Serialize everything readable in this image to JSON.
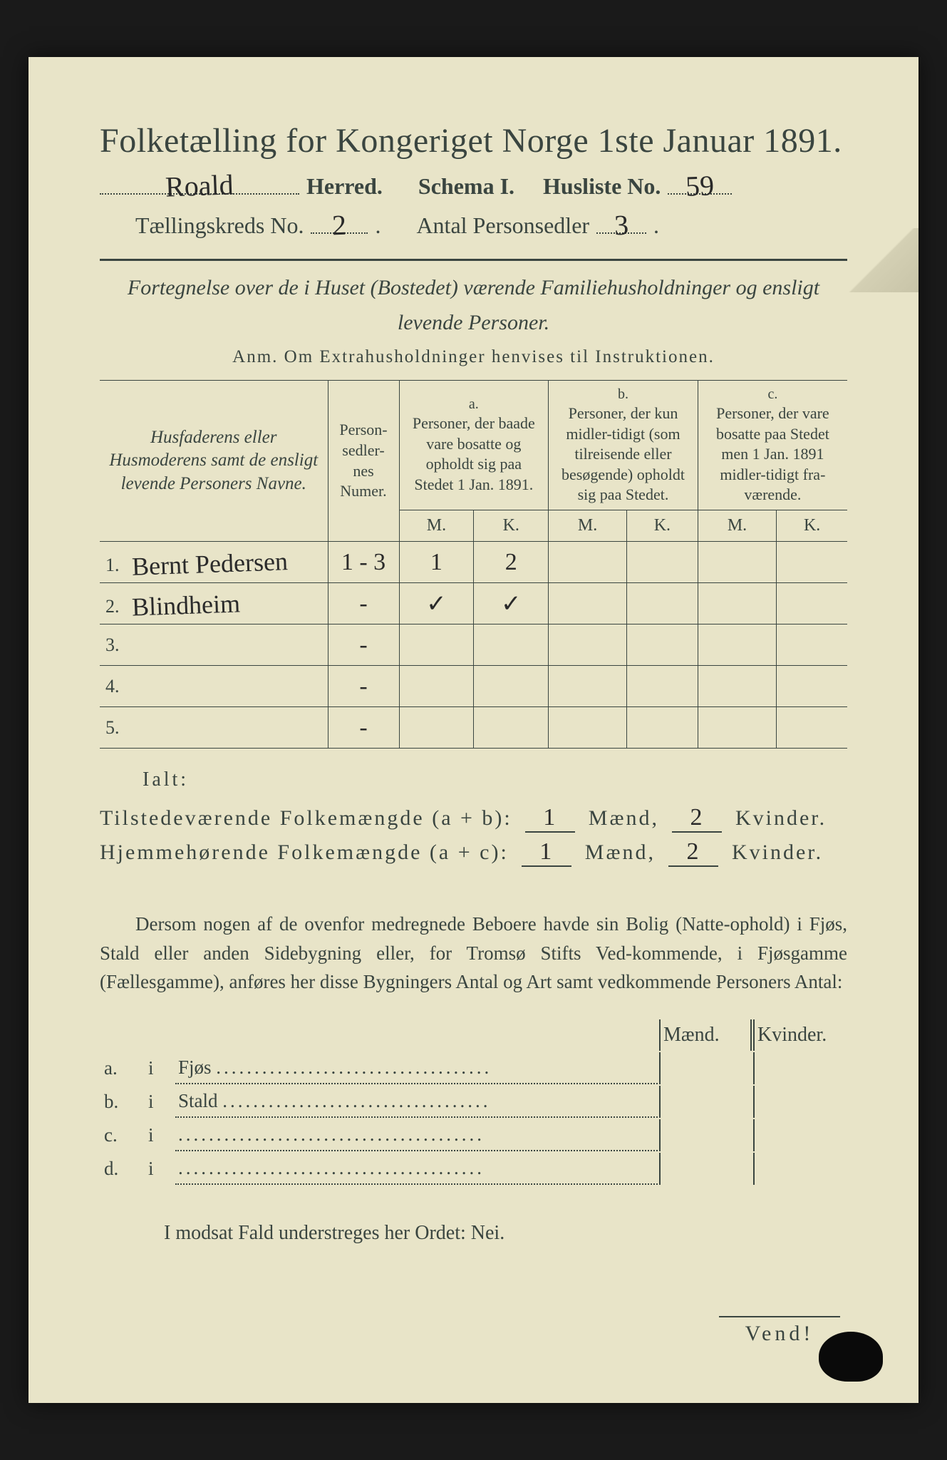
{
  "colors": {
    "paper": "#e8e4c8",
    "ink": "#3a4540",
    "handwriting": "#2a2a2a",
    "backdrop": "#1a1a1a"
  },
  "fonts": {
    "print_family": "Georgia, Times New Roman, serif",
    "hand_family": "Brush Script MT, Segoe Script, cursive",
    "title_size_pt": 36,
    "subtitle_size_pt": 24,
    "body_size_pt": 20,
    "hand_size_pt": 30
  },
  "header": {
    "title": "Folketælling for Kongeriget Norge 1ste Januar 1891.",
    "herred_hand": "Roald",
    "herred_label": "Herred.",
    "schema_label": "Schema I.",
    "husliste_label": "Husliste No.",
    "husliste_no_hand": "59",
    "kreds_label": "Tællingskreds No.",
    "kreds_no_hand": "2",
    "antal_label": "Antal Personsedler",
    "antal_hand": "3"
  },
  "intro": {
    "line1": "Fortegnelse over de i Huset (Bostedet) værende Familiehusholdninger og ensligt",
    "line2": "levende Personer.",
    "anm": "Anm.  Om Extrahusholdninger henvises til Instruktionen."
  },
  "table": {
    "col_name": "Husfaderens eller Husmoderens samt de ensligt levende Personers Navne.",
    "col_sedler": "Person-sedler-nes Numer.",
    "grp_a_sup": "a.",
    "grp_a": "Personer, der baade vare bosatte og opholdt sig paa Stedet 1 Jan. 1891.",
    "grp_b_sup": "b.",
    "grp_b": "Personer, der kun midler-tidigt (som tilreisende eller besøgende) opholdt sig paa Stedet.",
    "grp_c_sup": "c.",
    "grp_c": "Personer, der vare bosatte paa Stedet men 1 Jan. 1891 midler-tidigt fra-værende.",
    "M": "M.",
    "K": "K.",
    "rows": [
      {
        "n": "1.",
        "name_hand": "Bernt Pedersen",
        "sedler": "1 - 3",
        "aM": "1",
        "aK": "2",
        "bM": "",
        "bK": "",
        "cM": "",
        "cK": ""
      },
      {
        "n": "2.",
        "name_hand": "Blindheim",
        "sedler": "-",
        "aM": "✓",
        "aK": "✓",
        "bM": "",
        "bK": "",
        "cM": "",
        "cK": ""
      },
      {
        "n": "3.",
        "name_hand": "",
        "sedler": "-",
        "aM": "",
        "aK": "",
        "bM": "",
        "bK": "",
        "cM": "",
        "cK": ""
      },
      {
        "n": "4.",
        "name_hand": "",
        "sedler": "-",
        "aM": "",
        "aK": "",
        "bM": "",
        "bK": "",
        "cM": "",
        "cK": ""
      },
      {
        "n": "5.",
        "name_hand": "",
        "sedler": "-",
        "aM": "",
        "aK": "",
        "bM": "",
        "bK": "",
        "cM": "",
        "cK": ""
      }
    ]
  },
  "totals": {
    "ialt": "Ialt:",
    "line1_label": "Tilstedeværende Folkemængde (a + b):",
    "line2_label": "Hjemmehørende Folkemængde (a + c):",
    "maend": "Mænd,",
    "kvinder": "Kvinder.",
    "l1_m": "1",
    "l1_k": "2",
    "l2_m": "1",
    "l2_k": "2"
  },
  "para": {
    "text": "Dersom nogen af de ovenfor medregnede Beboere havde sin Bolig (Natte-ophold) i Fjøs, Stald eller anden Sidebygning eller, for Tromsø Stifts Ved-kommende, i Fjøsgamme (Fællesgamme), anføres her disse Bygningers Antal og Art samt vedkommende Personers Antal:"
  },
  "side": {
    "maend": "Mænd.",
    "kvinder": "Kvinder.",
    "rows": [
      {
        "k": "a.",
        "i": "i",
        "label": "Fjøs"
      },
      {
        "k": "b.",
        "i": "i",
        "label": "Stald"
      },
      {
        "k": "c.",
        "i": "i",
        "label": ""
      },
      {
        "k": "d.",
        "i": "i",
        "label": ""
      }
    ]
  },
  "nei": "I modsat Fald understreges her Ordet: Nei.",
  "vend": "Vend!"
}
